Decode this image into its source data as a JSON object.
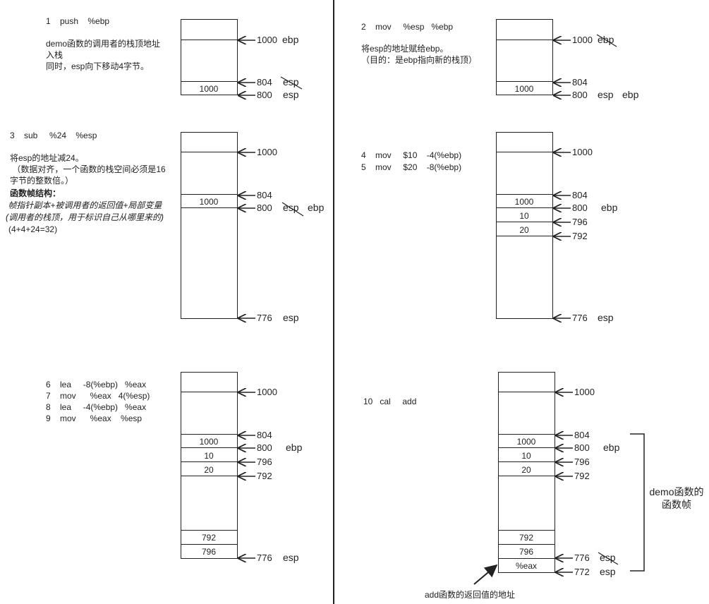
{
  "panel1": {
    "instr": "1    push    %ebp",
    "desc": [
      "demo函数的调用者的栈顶地址",
      "入栈",
      "同时，esp向下移动4字节。"
    ],
    "cells": [
      "1000"
    ],
    "labels": {
      "a1000": "1000",
      "ebp": "ebp",
      "a804": "804",
      "esp_old": "esp",
      "a800": "800",
      "esp": "esp"
    }
  },
  "panel2": {
    "instr": "2    mov     %esp   %ebp",
    "desc": [
      "将esp的地址赋给ebp。",
      "（目的：是ebp指向新的栈顶）"
    ],
    "cells": [
      "1000"
    ],
    "labels": {
      "a1000": "1000",
      "ebp_old": "ebp",
      "a804": "804",
      "a800": "800",
      "esp": "esp",
      "ebp": "ebp"
    }
  },
  "panel3": {
    "instr": "3    sub     %24    %esp",
    "desc": [
      "将esp的地址减24。",
      " （数据对齐，一个函数的栈空间必须是16",
      "字节的整数倍。）"
    ],
    "struct_title": "函数帧结构：",
    "struct_line1": " 帧指针副本+被调用者的返回值+局部变量",
    "struct_line2": "(调用者的栈顶，用于标识自己从哪里来的)",
    "struct_line3": "(4+4+24=32)",
    "cells": [
      "1000"
    ],
    "labels": {
      "a1000": "1000",
      "a804": "804",
      "a800": "800",
      "esp_old": "esp",
      "ebp": "ebp",
      "a776": "776",
      "esp": "esp"
    }
  },
  "panel4": {
    "instr": [
      "4    mov     $10    -4(%ebp)",
      "5    mov     $20    -8(%ebp)"
    ],
    "cells": [
      "1000",
      "10",
      "20"
    ],
    "labels": {
      "a1000": "1000",
      "a804": "804",
      "a800": "800",
      "ebp": "ebp",
      "a796": "796",
      "a792": "792",
      "a776": "776",
      "esp": "esp"
    }
  },
  "panel5": {
    "instr": [
      "6    lea     -8(%ebp)   %eax",
      "7    mov      %eax   4(%esp)",
      "8    lea     -4(%ebp)   %eax",
      "9    mov      %eax    %esp"
    ],
    "cells": [
      "1000",
      "10",
      "20",
      "792",
      "796"
    ],
    "labels": {
      "a1000": "1000",
      "a804": "804",
      "a800": "800",
      "ebp": "ebp",
      "a796": "796",
      "a792": "792",
      "a776": "776",
      "esp": "esp"
    }
  },
  "panel6": {
    "instr": "10   cal     add",
    "cells": [
      "1000",
      "10",
      "20",
      "792",
      "796",
      "%eax"
    ],
    "labels": {
      "a1000": "1000",
      "a804": "804",
      "a800": "800",
      "ebp": "ebp",
      "a796": "796",
      "a792": "792",
      "a776": "776",
      "esp_old": "esp",
      "a772": "772",
      "esp": "esp"
    },
    "bracket_label": [
      "demo函数的",
      "函数帧"
    ],
    "arrow_label": "add函数的返回值的地址"
  }
}
